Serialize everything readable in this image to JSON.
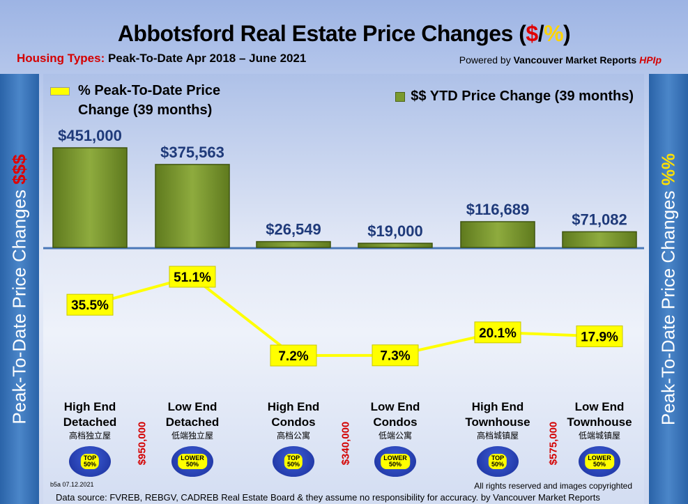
{
  "title": {
    "prefix": "Abbotsford Real Estate Price Changes (",
    "dollar": "$",
    "slash": "/",
    "pct": "%",
    "suffix": ")"
  },
  "subtitle": {
    "label": "Housing Types:",
    "text": " Peak-To-Date Apr 2018 – June 2021"
  },
  "powered": {
    "prefix": "Powered by ",
    "brand": "Vancouver Market Reports",
    "tag": "HPIp"
  },
  "legend": {
    "pct": "% Peak-To-Date Price",
    "pct2": "Change (39 months)",
    "ytd": "$$ YTD Price Change (39 months)"
  },
  "sidebar_left": {
    "text": "Peak-To-Date Price Changes ",
    "acc": "$$$"
  },
  "sidebar_right": {
    "text": "Peak-To-Date  Price  Changes  ",
    "acc": "%%"
  },
  "categories": [
    {
      "en1": "High End",
      "en2": "Detached",
      "cn": "高档独立屋",
      "badge": "TOP\n50%"
    },
    {
      "en1": "Low End",
      "en2": "Detached",
      "cn": "低端独立屋",
      "badge": "LOWER\n50%"
    },
    {
      "en1": "High End",
      "en2": "Condos",
      "cn": "高档公寓",
      "badge": "TOP\n50%"
    },
    {
      "en1": "Low End",
      "en2": "Condos",
      "cn": "低端公寓",
      "badge": "LOWER\n50%"
    },
    {
      "en1": "High End",
      "en2": "Townhouse",
      "cn": "高档城镇屋",
      "badge": "TOP\n50%"
    },
    {
      "en1": "Low End",
      "en2": "Townhouse",
      "cn": "低端城镇屋",
      "badge": "LOWER\n50%"
    }
  ],
  "thresholds": [
    "$950,000",
    "$340,000",
    "$575,000"
  ],
  "footer": {
    "code": "b5a 07.12.2021",
    "rights": "All rights reserved and  images copyrighted",
    "source": "Data source: FVREB, REBGV, CADREB Real Estate Board & they assume no responsibility for accuracy. by Vancouver Market Reports"
  },
  "colors": {
    "bar": "#7a9a2e",
    "line": "#ffff00",
    "label_blue": "#1f3a7a",
    "threshold": "#d40000"
  },
  "chart_data": {
    "type": "bar",
    "categories": [
      "High End Detached",
      "Low End Detached",
      "High End Condos",
      "Low End Condos",
      "High End Townhouse",
      "Low End Townhouse"
    ],
    "series": [
      {
        "name": "$$ YTD Price Change (39 months)",
        "type": "bar",
        "values": [
          451000,
          375563,
          26549,
          19000,
          116689,
          71082
        ],
        "labels": [
          "$451,000",
          "$375,563",
          "$26,549",
          "$19,000",
          "$116,689",
          "$71,082"
        ]
      },
      {
        "name": "% Peak-To-Date Price Change (39 months)",
        "type": "line",
        "values": [
          35.5,
          51.1,
          7.2,
          7.3,
          20.1,
          17.9
        ],
        "labels": [
          "35.5%",
          "51.1%",
          "7.2%",
          "7.3%",
          "20.1%",
          "17.9%"
        ]
      }
    ],
    "title": "Abbotsford Real Estate Price Changes ($/%)"
  }
}
